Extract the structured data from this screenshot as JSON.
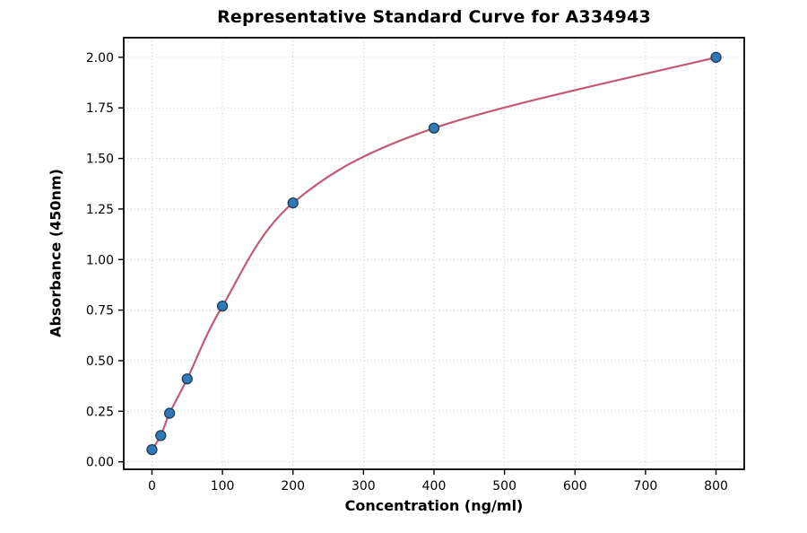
{
  "figure": {
    "title": "Representative Standard Curve for A334943"
  },
  "chart_data": {
    "type": "scatter",
    "title": "Representative Standard Curve for A334943",
    "xlabel": "Concentration (ng/ml)",
    "ylabel": "Absorbance (450nm)",
    "x": [
      0,
      12.5,
      25,
      50,
      100,
      200,
      400,
      800
    ],
    "y": [
      0.06,
      0.13,
      0.24,
      0.41,
      0.77,
      1.28,
      1.65,
      2.0
    ],
    "x_ticks": [
      0,
      100,
      200,
      300,
      400,
      500,
      600,
      700,
      800
    ],
    "y_ticks": [
      0.0,
      0.25,
      0.5,
      0.75,
      1.0,
      1.25,
      1.5,
      1.75,
      2.0
    ],
    "xlim": [
      -40,
      840
    ],
    "ylim": [
      -0.037,
      2.097
    ],
    "grid": true,
    "grid_style": "dotted",
    "legend": "none",
    "series_note": "single series: measured points with fitted standard curve",
    "colors": {
      "marker_fill": "#3178b4",
      "marker_edge": "#1d3f5e",
      "curve": "#c25b73",
      "grid": "#c9c9c9",
      "spine": "#000000",
      "background": "#ffffff"
    }
  }
}
